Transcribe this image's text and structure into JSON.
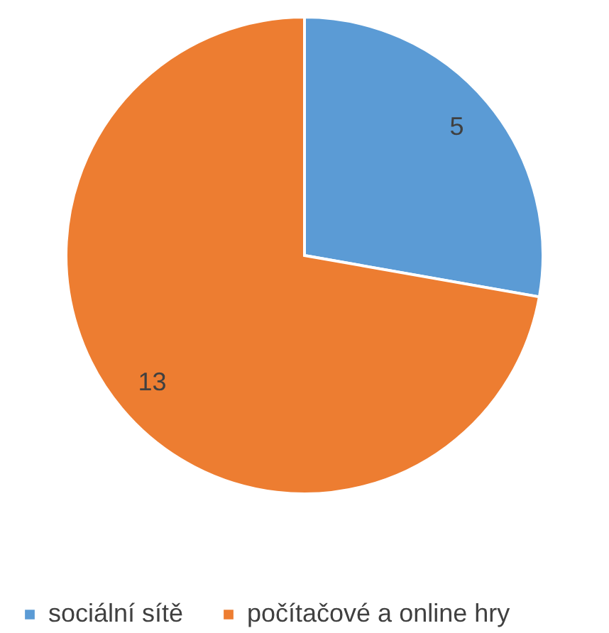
{
  "chart_data": {
    "type": "pie",
    "categories": [
      "sociální sítě",
      "počítačové a online  hry"
    ],
    "values": [
      5,
      13
    ],
    "colors": [
      "#5b9bd5",
      "#ed7d31"
    ],
    "data_labels": true,
    "legend": "bottom"
  }
}
